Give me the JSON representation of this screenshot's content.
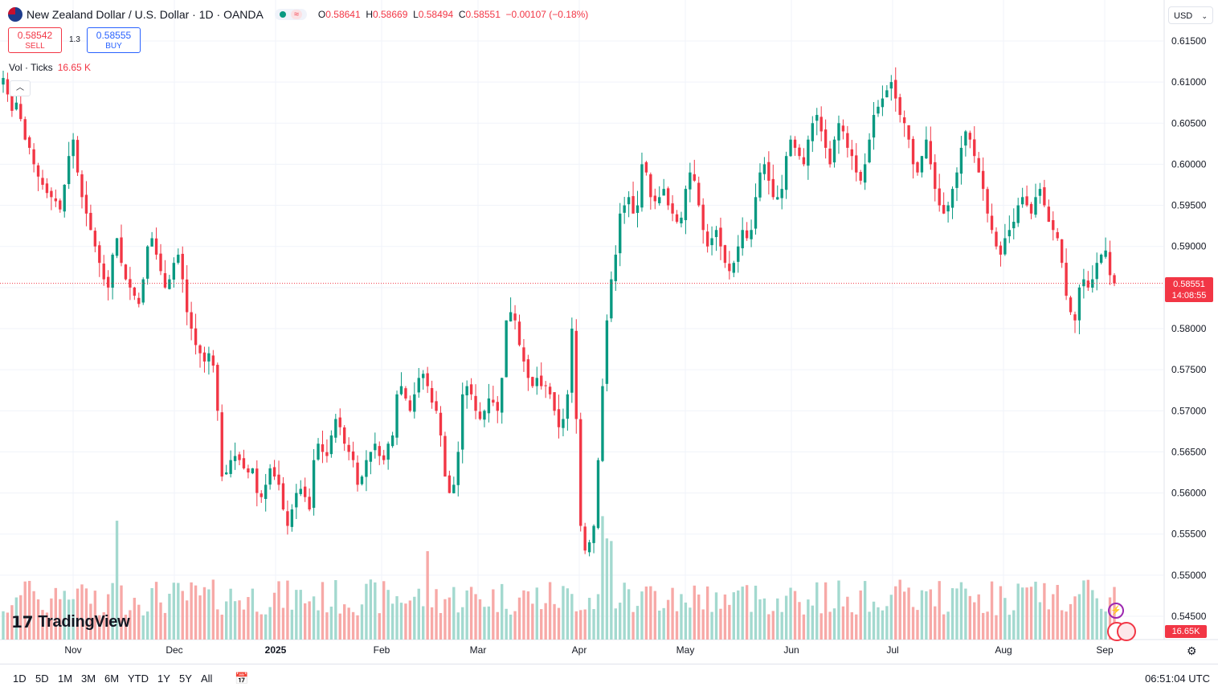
{
  "header": {
    "title": "New Zealand Dollar / U.S. Dollar · 1D · OANDA",
    "ohlc": {
      "o_label": "O",
      "o": "0.58641",
      "h_label": "H",
      "h": "0.58669",
      "l_label": "L",
      "l": "0.58494",
      "c_label": "C",
      "c": "0.58551",
      "change": "−0.00107 (−0.18%)"
    }
  },
  "trade": {
    "sell_price": "0.58542",
    "sell_label": "SELL",
    "buy_price": "0.58555",
    "buy_label": "BUY",
    "spread": "1.3"
  },
  "volume": {
    "label": "Vol · Ticks",
    "value": "16.65 K",
    "tag": "16.65K"
  },
  "currency": "USD",
  "price_tag": {
    "price": "0.58551",
    "countdown": "14:08:55"
  },
  "logo": "TradingView",
  "timeframes": [
    "1D",
    "5D",
    "1M",
    "3M",
    "6M",
    "YTD",
    "1Y",
    "5Y",
    "All"
  ],
  "clock": "06:51:04 UTC",
  "colors": {
    "up": "#089981",
    "down": "#f23645",
    "vol_up": "#a3d9cf",
    "vol_down": "#f7a9a7"
  },
  "chart_data": {
    "type": "candlestick",
    "symbol": "NZDUSD",
    "interval": "1D",
    "ylim": [
      0.5425,
      0.617
    ],
    "yticks": [
      "0.61500",
      "0.61000",
      "0.60500",
      "0.60000",
      "0.59500",
      "0.59000",
      "0.58500",
      "0.58000",
      "0.57500",
      "0.57000",
      "0.56500",
      "0.56000",
      "0.55500",
      "0.55000",
      "0.54500"
    ],
    "xticks": [
      "Nov",
      "Dec",
      "2025",
      "Feb",
      "Mar",
      "Apr",
      "May",
      "Jun",
      "Jul",
      "Aug",
      "Sep"
    ],
    "closes": [
      0.6105,
      0.6085,
      0.6065,
      0.6075,
      0.6055,
      0.603,
      0.602,
      0.6,
      0.5985,
      0.5975,
      0.5965,
      0.596,
      0.5955,
      0.5945,
      0.5975,
      0.601,
      0.603,
      0.599,
      0.596,
      0.594,
      0.592,
      0.59,
      0.588,
      0.586,
      0.585,
      0.589,
      0.591,
      0.588,
      0.586,
      0.585,
      0.584,
      0.583,
      0.586,
      0.59,
      0.591,
      0.589,
      0.587,
      0.585,
      0.586,
      0.588,
      0.589,
      0.586,
      0.582,
      0.58,
      0.578,
      0.577,
      0.576,
      0.577,
      0.5755,
      0.57,
      0.562,
      0.5625,
      0.564,
      0.5645,
      0.564,
      0.563,
      0.5625,
      0.563,
      0.56,
      0.5595,
      0.561,
      0.563,
      0.562,
      0.561,
      0.558,
      0.556,
      0.558,
      0.56,
      0.5605,
      0.5595,
      0.558,
      0.564,
      0.566,
      0.565,
      0.5645,
      0.567,
      0.569,
      0.568,
      0.566,
      0.565,
      0.564,
      0.561,
      0.562,
      0.564,
      0.565,
      0.566,
      0.5645,
      0.564,
      0.566,
      0.567,
      0.572,
      0.573,
      0.5715,
      0.57,
      0.572,
      0.574,
      0.5745,
      0.573,
      0.571,
      0.57,
      0.567,
      0.562,
      0.56,
      0.561,
      0.565,
      0.572,
      0.573,
      0.572,
      0.57,
      0.569,
      0.57,
      0.5715,
      0.571,
      0.57,
      0.574,
      0.581,
      0.582,
      0.581,
      0.578,
      0.576,
      0.574,
      0.573,
      0.574,
      0.573,
      0.573,
      0.572,
      0.57,
      0.568,
      0.569,
      0.572,
      0.58,
      0.569,
      0.556,
      0.553,
      0.554,
      0.556,
      0.564,
      0.573,
      0.581,
      0.586,
      0.589,
      0.594,
      0.595,
      0.596,
      0.594,
      0.595,
      0.6,
      0.599,
      0.596,
      0.5955,
      0.596,
      0.597,
      0.595,
      0.594,
      0.593,
      0.5935,
      0.597,
      0.599,
      0.598,
      0.595,
      0.592,
      0.59,
      0.591,
      0.592,
      0.59,
      0.588,
      0.587,
      0.588,
      0.59,
      0.592,
      0.591,
      0.592,
      0.596,
      0.599,
      0.6,
      0.598,
      0.596,
      0.596,
      0.597,
      0.601,
      0.603,
      0.602,
      0.601,
      0.6,
      0.603,
      0.605,
      0.606,
      0.604,
      0.602,
      0.6,
      0.603,
      0.605,
      0.604,
      0.602,
      0.601,
      0.599,
      0.598,
      0.6,
      0.603,
      0.606,
      0.607,
      0.608,
      0.609,
      0.61,
      0.608,
      0.606,
      0.605,
      0.603,
      0.6,
      0.599,
      0.601,
      0.603,
      0.6,
      0.597,
      0.595,
      0.594,
      0.595,
      0.597,
      0.599,
      0.602,
      0.604,
      0.603,
      0.601,
      0.599,
      0.597,
      0.594,
      0.592,
      0.59,
      0.589,
      0.591,
      0.592,
      0.593,
      0.595,
      0.596,
      0.595,
      0.594,
      0.596,
      0.597,
      0.595,
      0.593,
      0.592,
      0.591,
      0.588,
      0.584,
      0.582,
      0.581,
      0.585,
      0.586,
      0.585,
      0.586,
      0.588,
      0.589,
      0.5895,
      0.5865,
      0.5855
    ]
  }
}
